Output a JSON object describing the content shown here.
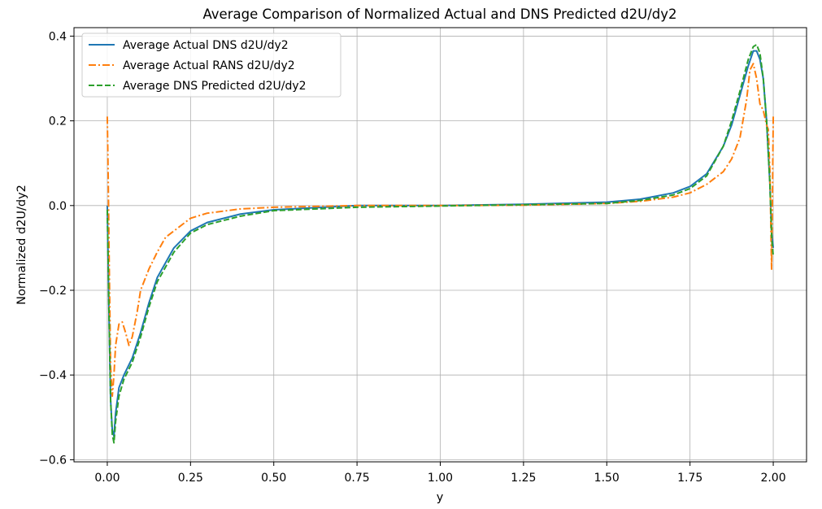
{
  "chart_data": {
    "type": "line",
    "title": "Average Comparison of Normalized Actual and DNS Predicted d2U/dy2",
    "xlabel": "y",
    "ylabel": "Normalized d2U/dy2",
    "xlim": [
      -0.1,
      2.1
    ],
    "ylim": [
      -0.605,
      0.42
    ],
    "x_ticks": [
      0.0,
      0.25,
      0.5,
      0.75,
      1.0,
      1.25,
      1.5,
      1.75,
      2.0
    ],
    "x_tick_labels": [
      "0.00",
      "0.25",
      "0.50",
      "0.75",
      "1.00",
      "1.25",
      "1.50",
      "1.75",
      "2.00"
    ],
    "y_ticks": [
      -0.6,
      -0.4,
      -0.2,
      0.0,
      0.2,
      0.4
    ],
    "y_tick_labels": [
      "−0.6",
      "−0.4",
      "−0.2",
      "0.0",
      "0.2",
      "0.4"
    ],
    "grid": true,
    "legend_position": "top-left",
    "series": [
      {
        "name": "Average Actual DNS d2U/dy2",
        "color": "#1f77b4",
        "style": "solid",
        "points": [
          [
            0.0,
            0.0
          ],
          [
            0.005,
            -0.25
          ],
          [
            0.01,
            -0.46
          ],
          [
            0.015,
            -0.53
          ],
          [
            0.02,
            -0.545
          ],
          [
            0.025,
            -0.49
          ],
          [
            0.035,
            -0.43
          ],
          [
            0.05,
            -0.4
          ],
          [
            0.075,
            -0.36
          ],
          [
            0.1,
            -0.3
          ],
          [
            0.125,
            -0.23
          ],
          [
            0.15,
            -0.17
          ],
          [
            0.2,
            -0.1
          ],
          [
            0.25,
            -0.06
          ],
          [
            0.3,
            -0.04
          ],
          [
            0.4,
            -0.02
          ],
          [
            0.5,
            -0.01
          ],
          [
            0.75,
            0.0
          ],
          [
            1.0,
            0.0
          ],
          [
            1.25,
            0.003
          ],
          [
            1.5,
            0.008
          ],
          [
            1.6,
            0.015
          ],
          [
            1.7,
            0.03
          ],
          [
            1.75,
            0.045
          ],
          [
            1.8,
            0.075
          ],
          [
            1.85,
            0.14
          ],
          [
            1.875,
            0.19
          ],
          [
            1.9,
            0.26
          ],
          [
            1.925,
            0.33
          ],
          [
            1.94,
            0.365
          ],
          [
            1.95,
            0.365
          ],
          [
            1.96,
            0.345
          ],
          [
            1.97,
            0.3
          ],
          [
            1.98,
            0.2
          ],
          [
            1.99,
            0.05
          ],
          [
            1.995,
            -0.06
          ],
          [
            2.0,
            -0.1
          ]
        ]
      },
      {
        "name": "Average Actual RANS d2U/dy2",
        "color": "#ff7f0e",
        "style": "dashdot",
        "points": [
          [
            0.0,
            0.21
          ],
          [
            0.003,
            0.05
          ],
          [
            0.006,
            -0.15
          ],
          [
            0.01,
            -0.38
          ],
          [
            0.015,
            -0.45
          ],
          [
            0.02,
            -0.4
          ],
          [
            0.025,
            -0.33
          ],
          [
            0.035,
            -0.28
          ],
          [
            0.045,
            -0.275
          ],
          [
            0.055,
            -0.3
          ],
          [
            0.065,
            -0.33
          ],
          [
            0.075,
            -0.31
          ],
          [
            0.09,
            -0.25
          ],
          [
            0.1,
            -0.2
          ],
          [
            0.125,
            -0.15
          ],
          [
            0.15,
            -0.11
          ],
          [
            0.175,
            -0.075
          ],
          [
            0.2,
            -0.06
          ],
          [
            0.25,
            -0.03
          ],
          [
            0.3,
            -0.018
          ],
          [
            0.4,
            -0.008
          ],
          [
            0.5,
            -0.004
          ],
          [
            0.75,
            0.0
          ],
          [
            1.0,
            0.0
          ],
          [
            1.25,
            0.001
          ],
          [
            1.5,
            0.005
          ],
          [
            1.6,
            0.01
          ],
          [
            1.7,
            0.02
          ],
          [
            1.75,
            0.03
          ],
          [
            1.8,
            0.05
          ],
          [
            1.85,
            0.08
          ],
          [
            1.875,
            0.11
          ],
          [
            1.9,
            0.16
          ],
          [
            1.92,
            0.25
          ],
          [
            1.93,
            0.32
          ],
          [
            1.94,
            0.335
          ],
          [
            1.95,
            0.3
          ],
          [
            1.96,
            0.24
          ],
          [
            1.97,
            0.225
          ],
          [
            1.98,
            0.19
          ],
          [
            1.985,
            0.18
          ],
          [
            1.99,
            0.08
          ],
          [
            1.995,
            -0.15
          ],
          [
            1.998,
            0.05
          ],
          [
            2.0,
            0.21
          ]
        ]
      },
      {
        "name": "Average DNS Predicted d2U/dy2",
        "color": "#2ca02c",
        "style": "dashed",
        "points": [
          [
            0.0,
            -0.01
          ],
          [
            0.005,
            -0.25
          ],
          [
            0.01,
            -0.46
          ],
          [
            0.015,
            -0.54
          ],
          [
            0.02,
            -0.56
          ],
          [
            0.025,
            -0.51
          ],
          [
            0.035,
            -0.45
          ],
          [
            0.05,
            -0.41
          ],
          [
            0.075,
            -0.37
          ],
          [
            0.1,
            -0.31
          ],
          [
            0.125,
            -0.24
          ],
          [
            0.15,
            -0.18
          ],
          [
            0.2,
            -0.11
          ],
          [
            0.25,
            -0.065
          ],
          [
            0.3,
            -0.045
          ],
          [
            0.4,
            -0.025
          ],
          [
            0.5,
            -0.012
          ],
          [
            0.75,
            -0.004
          ],
          [
            1.0,
            -0.001
          ],
          [
            1.25,
            0.002
          ],
          [
            1.5,
            0.005
          ],
          [
            1.6,
            0.012
          ],
          [
            1.7,
            0.025
          ],
          [
            1.75,
            0.04
          ],
          [
            1.8,
            0.07
          ],
          [
            1.85,
            0.14
          ],
          [
            1.875,
            0.2
          ],
          [
            1.9,
            0.27
          ],
          [
            1.925,
            0.345
          ],
          [
            1.94,
            0.375
          ],
          [
            1.95,
            0.38
          ],
          [
            1.96,
            0.36
          ],
          [
            1.97,
            0.3
          ],
          [
            1.98,
            0.2
          ],
          [
            1.99,
            0.05
          ],
          [
            1.995,
            -0.07
          ],
          [
            2.0,
            -0.12
          ]
        ]
      }
    ]
  }
}
